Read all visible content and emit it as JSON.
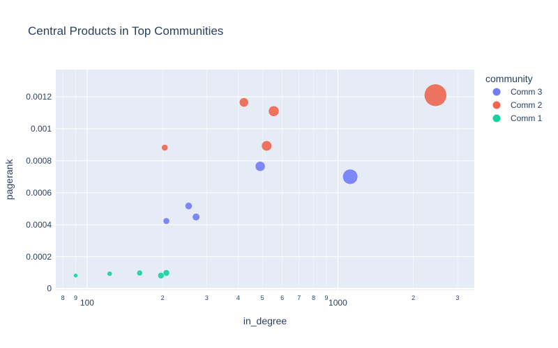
{
  "chart_data": {
    "type": "scatter",
    "title": "Central Products in Top Communities",
    "xlabel": "in_degree",
    "ylabel": "pagerank",
    "xscale": "log",
    "xlim": [
      75,
      3500
    ],
    "ylim": [
      -1e-05,
      0.00137
    ],
    "x_major_ticks": [
      {
        "value": 100,
        "label": "100"
      },
      {
        "value": 1000,
        "label": "1000"
      }
    ],
    "x_minor_ticks": [
      {
        "value": 80,
        "label": "8"
      },
      {
        "value": 90,
        "label": "9"
      },
      {
        "value": 200,
        "label": "2"
      },
      {
        "value": 300,
        "label": "3"
      },
      {
        "value": 400,
        "label": "4"
      },
      {
        "value": 500,
        "label": "5"
      },
      {
        "value": 600,
        "label": "6"
      },
      {
        "value": 700,
        "label": "7"
      },
      {
        "value": 800,
        "label": "8"
      },
      {
        "value": 900,
        "label": "9"
      },
      {
        "value": 2000,
        "label": "2"
      },
      {
        "value": 3000,
        "label": "3"
      }
    ],
    "y_ticks": [
      {
        "value": 0,
        "label": "0"
      },
      {
        "value": 0.0002,
        "label": "0.0002"
      },
      {
        "value": 0.0004,
        "label": "0.0004"
      },
      {
        "value": 0.0006,
        "label": "0.0006"
      },
      {
        "value": 0.0008,
        "label": "0.0008"
      },
      {
        "value": 0.001,
        "label": "0.001"
      },
      {
        "value": 0.0012,
        "label": "0.0012"
      }
    ],
    "legend_title": "community",
    "legend_position": "top-right",
    "series": [
      {
        "name": "Comm 3",
        "color": "#636efa",
        "points": [
          {
            "x": 1120,
            "y": 0.0007,
            "size": 1120
          },
          {
            "x": 490,
            "y": 0.000765,
            "size": 490
          },
          {
            "x": 272,
            "y": 0.000448,
            "size": 272
          },
          {
            "x": 254,
            "y": 0.000517,
            "size": 254
          },
          {
            "x": 207,
            "y": 0.000423,
            "size": 207
          }
        ]
      },
      {
        "name": "Comm 2",
        "color": "#EF553B",
        "points": [
          {
            "x": 2450,
            "y": 0.00121,
            "size": 2450
          },
          {
            "x": 555,
            "y": 0.00111,
            "size": 555
          },
          {
            "x": 520,
            "y": 0.000893,
            "size": 520
          },
          {
            "x": 422,
            "y": 0.001165,
            "size": 422
          },
          {
            "x": 204,
            "y": 0.000882,
            "size": 204
          }
        ]
      },
      {
        "name": "Comm 1",
        "color": "#00cc96",
        "points": [
          {
            "x": 207,
            "y": 9.8e-05,
            "size": 207
          },
          {
            "x": 197,
            "y": 8.2e-05,
            "size": 197
          },
          {
            "x": 162,
            "y": 9.8e-05,
            "size": 162
          },
          {
            "x": 123,
            "y": 9.3e-05,
            "size": 123
          },
          {
            "x": 90,
            "y": 8.2e-05,
            "size": 90
          }
        ]
      }
    ]
  }
}
